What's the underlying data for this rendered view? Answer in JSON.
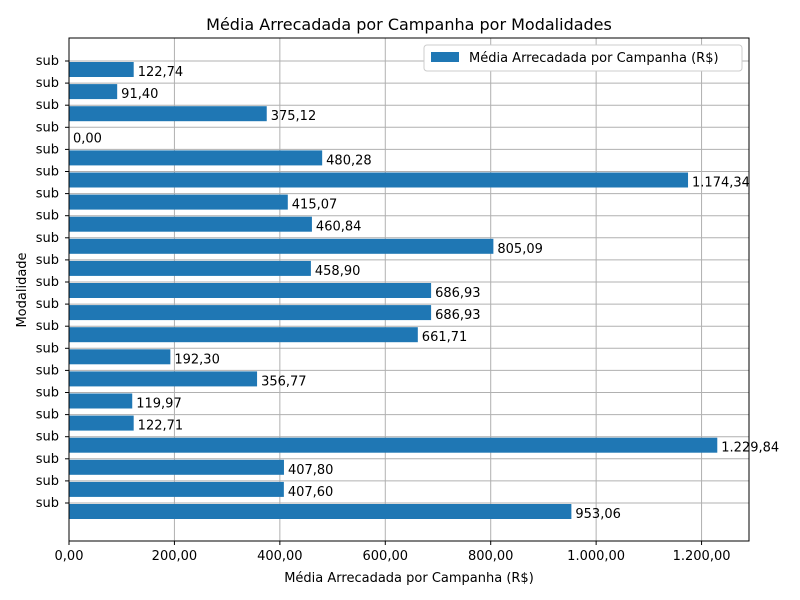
{
  "chart_data": {
    "type": "bar",
    "orientation": "horizontal",
    "title": "Média Arrecadada por Campanha por Modalidades",
    "xlabel": "Média Arrecadada por Campanha (R$)",
    "ylabel": "Modalidade",
    "xlim": [
      0,
      1290
    ],
    "x_ticks": [
      0,
      200,
      400,
      600,
      800,
      1000,
      1200
    ],
    "x_tick_labels": [
      "0,00",
      "200,00",
      "400,00",
      "600,00",
      "800,00",
      "1.000,00",
      "1.200,00"
    ],
    "grid": true,
    "legend_position": "top-right",
    "bar_color": "#1f77b4",
    "category_label": "sub",
    "series": [
      {
        "name": "Média Arrecadada por Campanha (R$)",
        "values": [
          122.74,
          91.4,
          375.12,
          0.0,
          480.28,
          1174.34,
          415.07,
          460.84,
          805.09,
          458.9,
          686.93,
          686.93,
          661.71,
          192.3,
          356.77,
          119.97,
          122.71,
          1229.84,
          407.8,
          407.6,
          953.06
        ],
        "labels": [
          "122,74",
          "91,40",
          "375,12",
          "0,00",
          "480,28",
          "1.174,34",
          "415,07",
          "460,84",
          "805,09",
          "458,90",
          "686,93",
          "686,93",
          "661,71",
          "192,30",
          "356,77",
          "119,97",
          "122,71",
          "1.229,84",
          "407,80",
          "407,60",
          "953,06"
        ]
      }
    ]
  }
}
